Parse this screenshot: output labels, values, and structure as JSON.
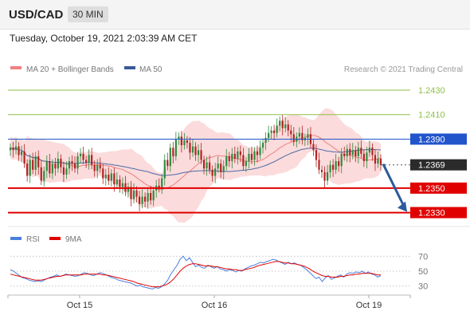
{
  "header": {
    "symbol": "USD/CAD",
    "period": "30 MIN",
    "datetime": "Tuesday, October 19, 2021 2:03:39 AM CET"
  },
  "colors": {
    "candle_up": "#2d8a3e",
    "candle_down": "#b22222",
    "band_fill": "#f9cfcf",
    "ma20": "#f08080",
    "ma50": "#4a6aa8",
    "pivot_line": "#2255cc",
    "support": "#e00000",
    "resistance": "#8fbf4a",
    "rsi": "#4a7fe0",
    "rsi_ma": "#e00000",
    "arrow": "#2c5a9c",
    "last_price": "#2b2b2b"
  },
  "chart_data": [
    {
      "type": "candlestick",
      "legend": [
        {
          "name": "MA 20 + Bollinger Bands",
          "color": "#f08080"
        },
        {
          "name": "MA 50",
          "color": "#4a6aa8"
        }
      ],
      "credit": "Research © 2021 Trading Central",
      "ylim": [
        1.2318,
        1.2445
      ],
      "x_ticks": [
        "Oct 15",
        "Oct 16",
        "Oct 19"
      ],
      "levels": [
        {
          "value": 1.243,
          "label": "1.2430",
          "kind": "resistance"
        },
        {
          "value": 1.241,
          "label": "1.2410",
          "kind": "resistance"
        },
        {
          "value": 1.239,
          "label": "1.2390",
          "kind": "pivot"
        },
        {
          "value": 1.2369,
          "label": "1.2369",
          "kind": "last"
        },
        {
          "value": 1.235,
          "label": "1.2350",
          "kind": "support"
        },
        {
          "value": 1.233,
          "label": "1.2330",
          "kind": "support"
        }
      ],
      "forecast_arrow": {
        "from": 1.2369,
        "to": 1.233
      },
      "close": [
        1.2383,
        1.2381,
        1.2384,
        1.2377,
        1.238,
        1.237,
        1.236,
        1.2373,
        1.2365,
        1.2376,
        1.2367,
        1.2356,
        1.2364,
        1.2372,
        1.2362,
        1.237,
        1.2366,
        1.2374,
        1.2367,
        1.2361,
        1.2366,
        1.2372,
        1.237,
        1.2366,
        1.2376,
        1.2378,
        1.2373,
        1.2371,
        1.2377,
        1.2369,
        1.2364,
        1.2369,
        1.2366,
        1.2358,
        1.2361,
        1.2356,
        1.2362,
        1.2353,
        1.2357,
        1.2351,
        1.2354,
        1.2347,
        1.2351,
        1.2341,
        1.2348,
        1.2343,
        1.2337,
        1.2343,
        1.2339,
        1.2346,
        1.234,
        1.2348,
        1.2352,
        1.235,
        1.2358,
        1.2373,
        1.2368,
        1.2383,
        1.2376,
        1.239,
        1.2392,
        1.2385,
        1.2389,
        1.2387,
        1.2379,
        1.2384,
        1.2377,
        1.2381,
        1.2373,
        1.2366,
        1.2371,
        1.2365,
        1.236,
        1.2366,
        1.237,
        1.2363,
        1.2368,
        1.2376,
        1.2372,
        1.2378,
        1.2374,
        1.238,
        1.2377,
        1.2368,
        1.2372,
        1.2378,
        1.2373,
        1.238,
        1.2377,
        1.2383,
        1.2387,
        1.2391,
        1.2395,
        1.2397,
        1.2395,
        1.2401,
        1.2405,
        1.2399,
        1.2402,
        1.2397,
        1.2394,
        1.2388,
        1.2392,
        1.2395,
        1.2389,
        1.2391,
        1.2394,
        1.2386,
        1.2381,
        1.2373,
        1.2365,
        1.2363,
        1.2356,
        1.2363,
        1.2369,
        1.2365,
        1.2372,
        1.2368,
        1.2378,
        1.2376,
        1.2382,
        1.2377,
        1.2381,
        1.2376,
        1.2383,
        1.2378,
        1.2372,
        1.2379,
        1.2383,
        1.2377,
        1.237,
        1.2374,
        1.2369
      ]
    },
    {
      "type": "line",
      "legend": [
        {
          "name": "RSI",
          "color": "#4a7fe0"
        },
        {
          "name": "9MA",
          "color": "#e00000"
        }
      ],
      "ylim": [
        20,
        80
      ],
      "y_ticks": [
        "70",
        "50",
        "30"
      ],
      "series": [
        {
          "name": "RSI",
          "values": [
            52,
            50,
            47,
            44,
            41,
            40,
            38,
            37,
            36,
            37,
            36,
            38,
            40,
            42,
            43,
            45,
            43,
            44,
            46,
            45,
            44,
            43,
            44,
            46,
            48,
            47,
            45,
            44,
            46,
            48,
            47,
            45,
            43,
            41,
            40,
            38,
            37,
            36,
            35,
            34,
            32,
            30,
            31,
            29,
            28,
            27,
            26,
            28,
            27,
            29,
            33,
            38,
            46,
            52,
            58,
            66,
            70,
            64,
            68,
            62,
            56,
            58,
            55,
            54,
            58,
            56,
            54,
            56,
            53,
            52,
            50,
            52,
            51,
            49,
            51,
            50,
            53,
            55,
            57,
            58,
            60,
            62,
            61,
            63,
            64,
            66,
            65,
            63,
            61,
            59,
            62,
            60,
            61,
            59,
            58,
            55,
            52,
            48,
            44,
            40,
            42,
            36,
            41,
            44,
            39,
            41,
            43,
            45,
            42,
            46,
            48,
            47,
            49,
            48,
            50,
            47,
            49,
            46,
            45,
            42,
            44
          ]
        },
        {
          "name": "9MA",
          "values": [
            46,
            45,
            44,
            43,
            42,
            41,
            40,
            39,
            38,
            38,
            38,
            39,
            40,
            41,
            42,
            43,
            43,
            44,
            45,
            45,
            45,
            45,
            45,
            45,
            46,
            46,
            46,
            46,
            46,
            46,
            45,
            45,
            44,
            43,
            42,
            41,
            40,
            39,
            38,
            37,
            36,
            34,
            33,
            32,
            31,
            30,
            29,
            29,
            29,
            30,
            31,
            33,
            36,
            40,
            45,
            50,
            54,
            57,
            59,
            60,
            60,
            59,
            58,
            57,
            57,
            57,
            56,
            56,
            55,
            54,
            53,
            53,
            52,
            52,
            51,
            51,
            52,
            53,
            54,
            55,
            57,
            58,
            59,
            60,
            61,
            62,
            63,
            63,
            62,
            61,
            61,
            60,
            60,
            59,
            58,
            57,
            55,
            53,
            50,
            48,
            46,
            44,
            43,
            43,
            42,
            42,
            42,
            43,
            43,
            44,
            45,
            45,
            46,
            46,
            47,
            47,
            47,
            47,
            46,
            45,
            45
          ]
        }
      ]
    }
  ]
}
